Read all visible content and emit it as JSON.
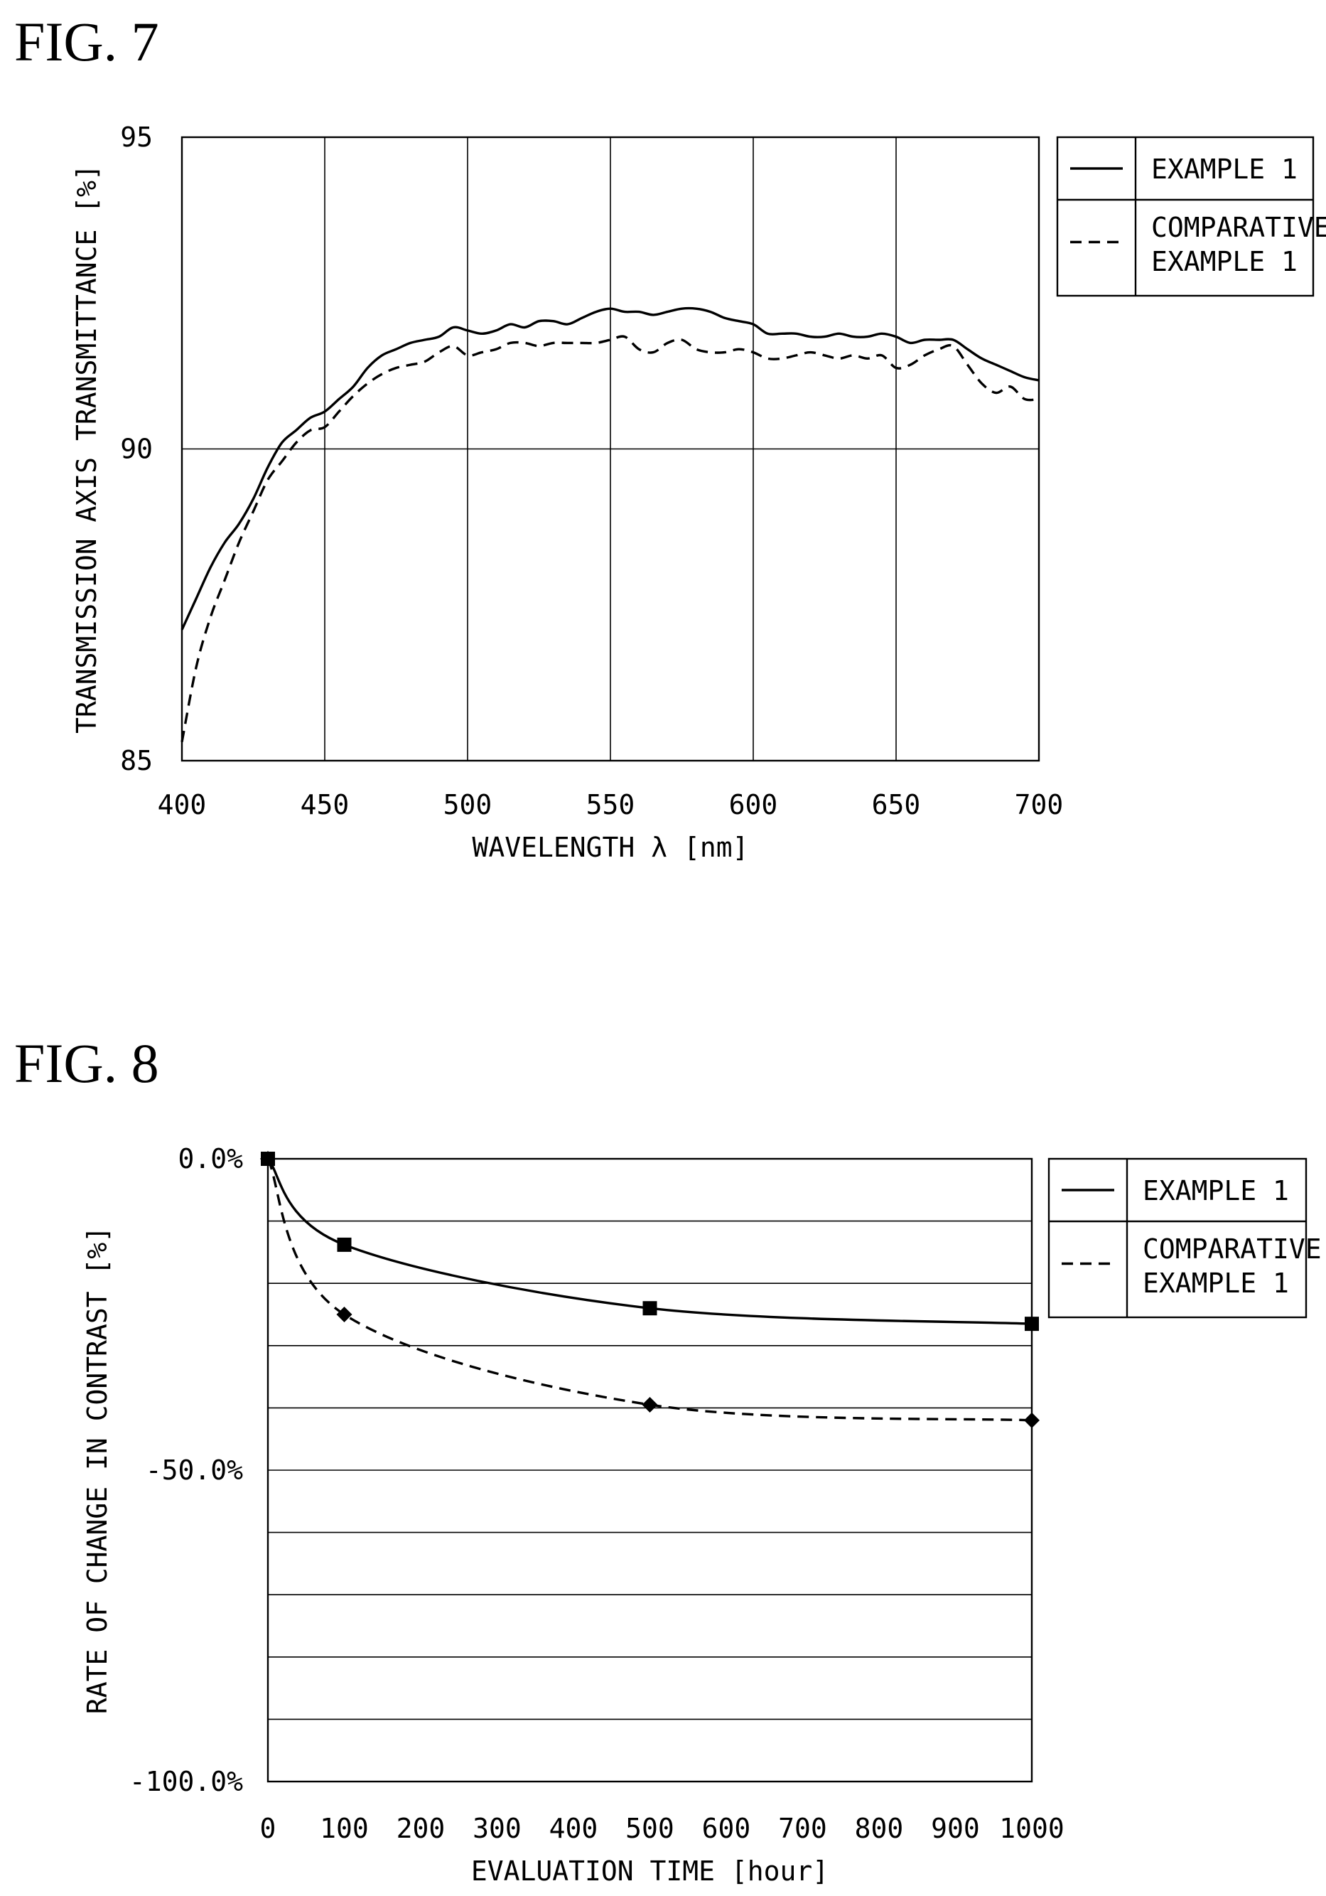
{
  "chart_data": [
    {
      "figure_label": "FIG. 7",
      "type": "line",
      "xlabel": "WAVELENGTH λ [nm]",
      "ylabel": "TRANSMISSION AXIS TRANSMITTANCE [%]",
      "xlim": [
        400,
        700
      ],
      "ylim": [
        85,
        95
      ],
      "xticks": [
        "400",
        "450",
        "500",
        "550",
        "600",
        "650",
        "700"
      ],
      "yticks": [
        "85",
        "90",
        "95"
      ],
      "grid": "x-major every 50, y at 90",
      "legend": {
        "placement": "outside-right-top",
        "entries": [
          "EXAMPLE 1",
          "COMPARATIVE\nEXAMPLE 1"
        ]
      },
      "series": [
        {
          "name": "EXAMPLE 1",
          "style": "solid",
          "x": [
            400,
            405,
            410,
            415,
            420,
            425,
            430,
            435,
            440,
            445,
            450,
            455,
            460,
            465,
            470,
            475,
            480,
            485,
            490,
            495,
            500,
            505,
            510,
            515,
            520,
            525,
            530,
            535,
            540,
            545,
            550,
            555,
            560,
            565,
            570,
            575,
            580,
            585,
            590,
            595,
            600,
            605,
            610,
            615,
            620,
            625,
            630,
            635,
            640,
            645,
            650,
            655,
            660,
            665,
            670,
            675,
            680,
            685,
            690,
            695,
            700
          ],
          "y": [
            87.1,
            87.6,
            88.1,
            88.5,
            88.8,
            89.2,
            89.7,
            90.1,
            90.3,
            90.5,
            90.6,
            90.8,
            91.0,
            91.3,
            91.5,
            91.6,
            91.7,
            91.75,
            91.8,
            91.95,
            91.9,
            91.85,
            91.9,
            92.0,
            91.95,
            92.05,
            92.05,
            92.0,
            92.1,
            92.2,
            92.25,
            92.2,
            92.2,
            92.15,
            92.2,
            92.25,
            92.25,
            92.2,
            92.1,
            92.05,
            92.0,
            91.85,
            91.85,
            91.85,
            91.8,
            91.8,
            91.85,
            91.8,
            91.8,
            91.85,
            91.8,
            91.7,
            91.75,
            91.75,
            91.75,
            91.6,
            91.45,
            91.35,
            91.25,
            91.15,
            91.1
          ]
        },
        {
          "name": "COMPARATIVE\nEXAMPLE 1",
          "style": "dashed",
          "x": [
            400,
            405,
            410,
            415,
            420,
            425,
            430,
            435,
            440,
            445,
            450,
            455,
            460,
            465,
            470,
            475,
            480,
            485,
            490,
            495,
            500,
            505,
            510,
            515,
            520,
            525,
            530,
            535,
            540,
            545,
            550,
            555,
            560,
            565,
            570,
            575,
            580,
            585,
            590,
            595,
            600,
            605,
            610,
            615,
            620,
            625,
            630,
            635,
            640,
            645,
            650,
            655,
            660,
            665,
            670,
            675,
            680,
            685,
            690,
            695,
            700
          ],
          "y": [
            85.3,
            86.5,
            87.3,
            87.9,
            88.5,
            89.0,
            89.5,
            89.8,
            90.1,
            90.3,
            90.35,
            90.6,
            90.85,
            91.05,
            91.2,
            91.3,
            91.35,
            91.4,
            91.55,
            91.65,
            91.5,
            91.55,
            91.6,
            91.7,
            91.7,
            91.65,
            91.7,
            91.7,
            91.7,
            91.7,
            91.75,
            91.8,
            91.6,
            91.55,
            91.7,
            91.75,
            91.6,
            91.55,
            91.55,
            91.6,
            91.55,
            91.45,
            91.45,
            91.5,
            91.55,
            91.5,
            91.45,
            91.5,
            91.45,
            91.5,
            91.3,
            91.35,
            91.5,
            91.6,
            91.65,
            91.35,
            91.05,
            90.9,
            91.0,
            90.8,
            90.8
          ]
        }
      ]
    },
    {
      "figure_label": "FIG. 8",
      "type": "line",
      "xlabel": "EVALUATION TIME [hour]",
      "ylabel": "RATE OF CHANGE IN CONTRAST [%]",
      "xlim": [
        0,
        1000
      ],
      "ylim": [
        -100,
        0
      ],
      "xticks": [
        "0",
        "100",
        "200",
        "300",
        "400",
        "500",
        "600",
        "700",
        "800",
        "900",
        "1000"
      ],
      "yticks": [
        "0.0%",
        "-50.0%",
        "-100.0%"
      ],
      "grid": "y-major every 10",
      "legend": {
        "placement": "outside-right-top",
        "entries": [
          "EXAMPLE 1",
          "COMPARATIVE\nEXAMPLE 1"
        ]
      },
      "series": [
        {
          "name": "EXAMPLE 1",
          "style": "solid",
          "marker": "square",
          "x": [
            0,
            100,
            500,
            1000
          ],
          "y": [
            0.0,
            -13.8,
            -24.0,
            -26.5
          ]
        },
        {
          "name": "COMPARATIVE\nEXAMPLE 1",
          "style": "dashed",
          "marker": "diamond",
          "x": [
            0,
            100,
            500,
            1000
          ],
          "y": [
            0.0,
            -25.0,
            -39.5,
            -42.0
          ]
        }
      ]
    }
  ]
}
